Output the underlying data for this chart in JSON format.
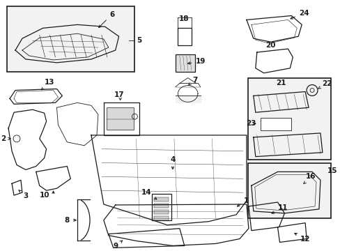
{
  "bg_color": "#ffffff",
  "line_color": "#1a1a1a",
  "box_fill": "#f2f2f2",
  "fig_width": 4.89,
  "fig_height": 3.6,
  "dpi": 100
}
